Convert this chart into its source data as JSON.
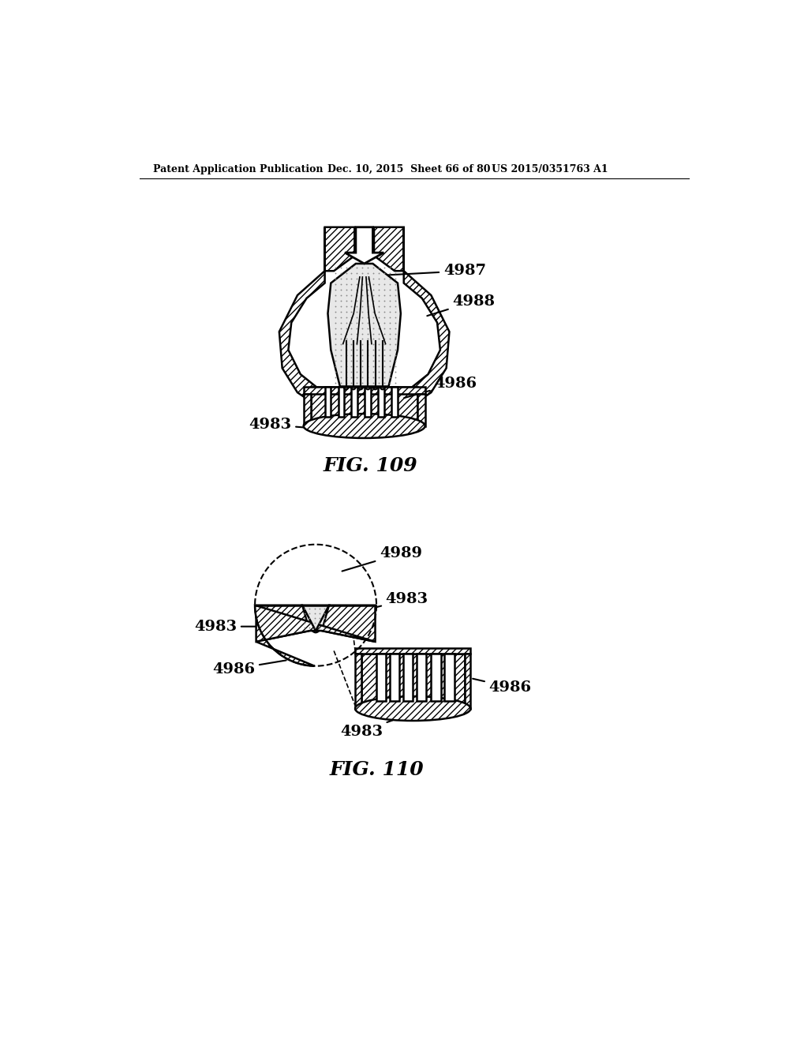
{
  "bg_color": "#ffffff",
  "header_left": "Patent Application Publication",
  "header_center": "Dec. 10, 2015  Sheet 66 of 80",
  "header_right": "US 2015/0351763 A1",
  "fig109_label": "FIG. 109",
  "fig110_label": "FIG. 110",
  "line_color": "#000000",
  "hatch_color": "#000000"
}
